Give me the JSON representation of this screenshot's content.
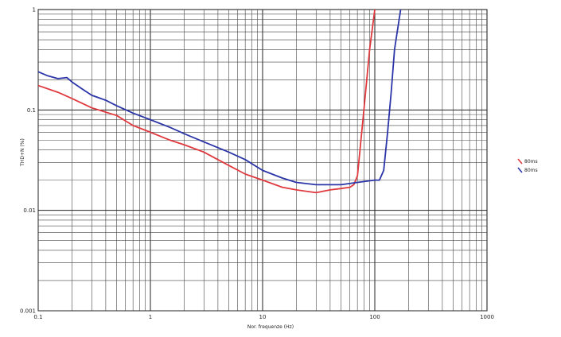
{
  "chart_data": {
    "type": "line",
    "xlabel": "Nor. frequenze (Hz)",
    "ylabel": "THD+N (%)",
    "x_scale": "log",
    "y_scale": "log",
    "xlim": [
      0.1,
      1000
    ],
    "ylim": [
      0.001,
      1
    ],
    "grid": true,
    "legend_position": "right",
    "x_tick_labels": [
      "0.1",
      "1",
      "10",
      "100",
      "1000"
    ],
    "x_tick_values": [
      0.1,
      1,
      10,
      100,
      1000
    ],
    "y_tick_labels": [
      "0.001",
      "0.01",
      "0.1",
      "1"
    ],
    "y_tick_values": [
      0.001,
      0.01,
      0.1,
      1
    ],
    "series": [
      {
        "name": "80ms",
        "color": "#e0393e",
        "x": [
          0.1,
          0.15,
          0.2,
          0.3,
          0.5,
          0.7,
          1,
          1.5,
          2,
          3,
          5,
          7,
          10,
          15,
          20,
          30,
          40,
          50,
          60,
          65,
          70,
          80,
          90,
          100
        ],
        "y": [
          0.175,
          0.15,
          0.13,
          0.105,
          0.088,
          0.07,
          0.06,
          0.05,
          0.045,
          0.038,
          0.028,
          0.023,
          0.02,
          0.017,
          0.016,
          0.015,
          0.016,
          0.0165,
          0.017,
          0.018,
          0.022,
          0.1,
          0.4,
          1
        ]
      },
      {
        "name": "80ms",
        "color": "#2b35a8",
        "x": [
          0.1,
          0.12,
          0.15,
          0.18,
          0.2,
          0.25,
          0.3,
          0.4,
          0.5,
          0.7,
          1,
          1.5,
          2,
          3,
          5,
          7,
          10,
          15,
          20,
          30,
          40,
          50,
          70,
          100,
          110,
          120,
          130,
          140,
          150,
          170
        ],
        "y": [
          0.24,
          0.22,
          0.205,
          0.21,
          0.19,
          0.16,
          0.14,
          0.125,
          0.11,
          0.093,
          0.08,
          0.067,
          0.058,
          0.048,
          0.038,
          0.032,
          0.025,
          0.021,
          0.019,
          0.018,
          0.018,
          0.018,
          0.019,
          0.02,
          0.02,
          0.025,
          0.06,
          0.15,
          0.4,
          1
        ]
      }
    ]
  }
}
